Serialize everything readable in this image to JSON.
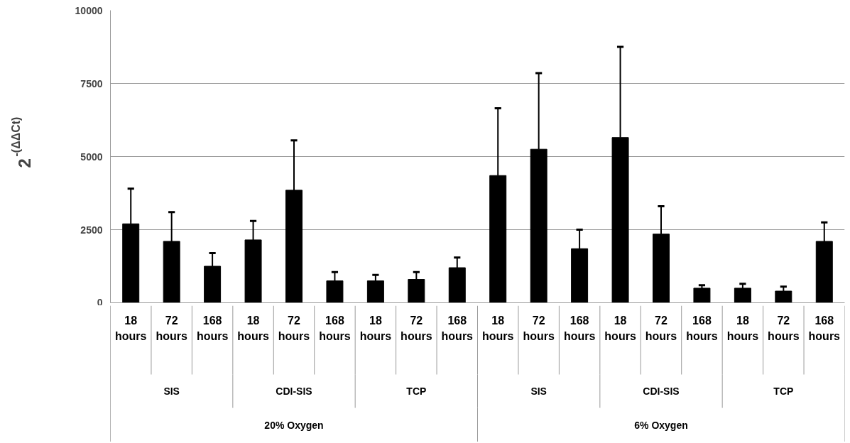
{
  "chart_data": {
    "type": "bar",
    "ylabel": "2$^{-(ΔΔCt)}$",
    "categories": [
      "18 hours",
      "72 hours",
      "168 hours",
      "18 hours",
      "72 hours",
      "168 hours",
      "18 hours",
      "72 hours",
      "168 hours",
      "18 hours",
      "72 hours",
      "168 hours",
      "18 hours",
      "72 hours",
      "168 hours",
      "18 hours",
      "72 hours",
      "168 hours"
    ],
    "values": [
      2700,
      2100,
      1250,
      2150,
      3850,
      750,
      750,
      800,
      1200,
      4350,
      5250,
      1850,
      5650,
      2350,
      500,
      500,
      400,
      2100
    ],
    "errors": [
      [
        2700,
        3900
      ],
      [
        2100,
        3100
      ],
      [
        1250,
        1700
      ],
      [
        2150,
        2800
      ],
      [
        3850,
        5550
      ],
      [
        750,
        1050
      ],
      [
        750,
        950
      ],
      [
        800,
        1050
      ],
      [
        1200,
        1550
      ],
      [
        4350,
        6650
      ],
      [
        5250,
        7850
      ],
      [
        1850,
        2500
      ],
      [
        5650,
        8750
      ],
      [
        2350,
        3300
      ],
      [
        500,
        600
      ],
      [
        500,
        650
      ],
      [
        400,
        550
      ],
      [
        2100,
        2750
      ]
    ],
    "color": "#000000",
    "ylim": [
      0,
      10000
    ],
    "yticks": [
      0,
      2500,
      5000,
      7500,
      10000
    ],
    "grid": "y",
    "annotations": [
      "SIS",
      "CDI-SIS",
      "TCP",
      "SIS",
      "CDI-SIS",
      "TCP",
      "20% Oxygen",
      "6% Oxygen"
    ]
  }
}
